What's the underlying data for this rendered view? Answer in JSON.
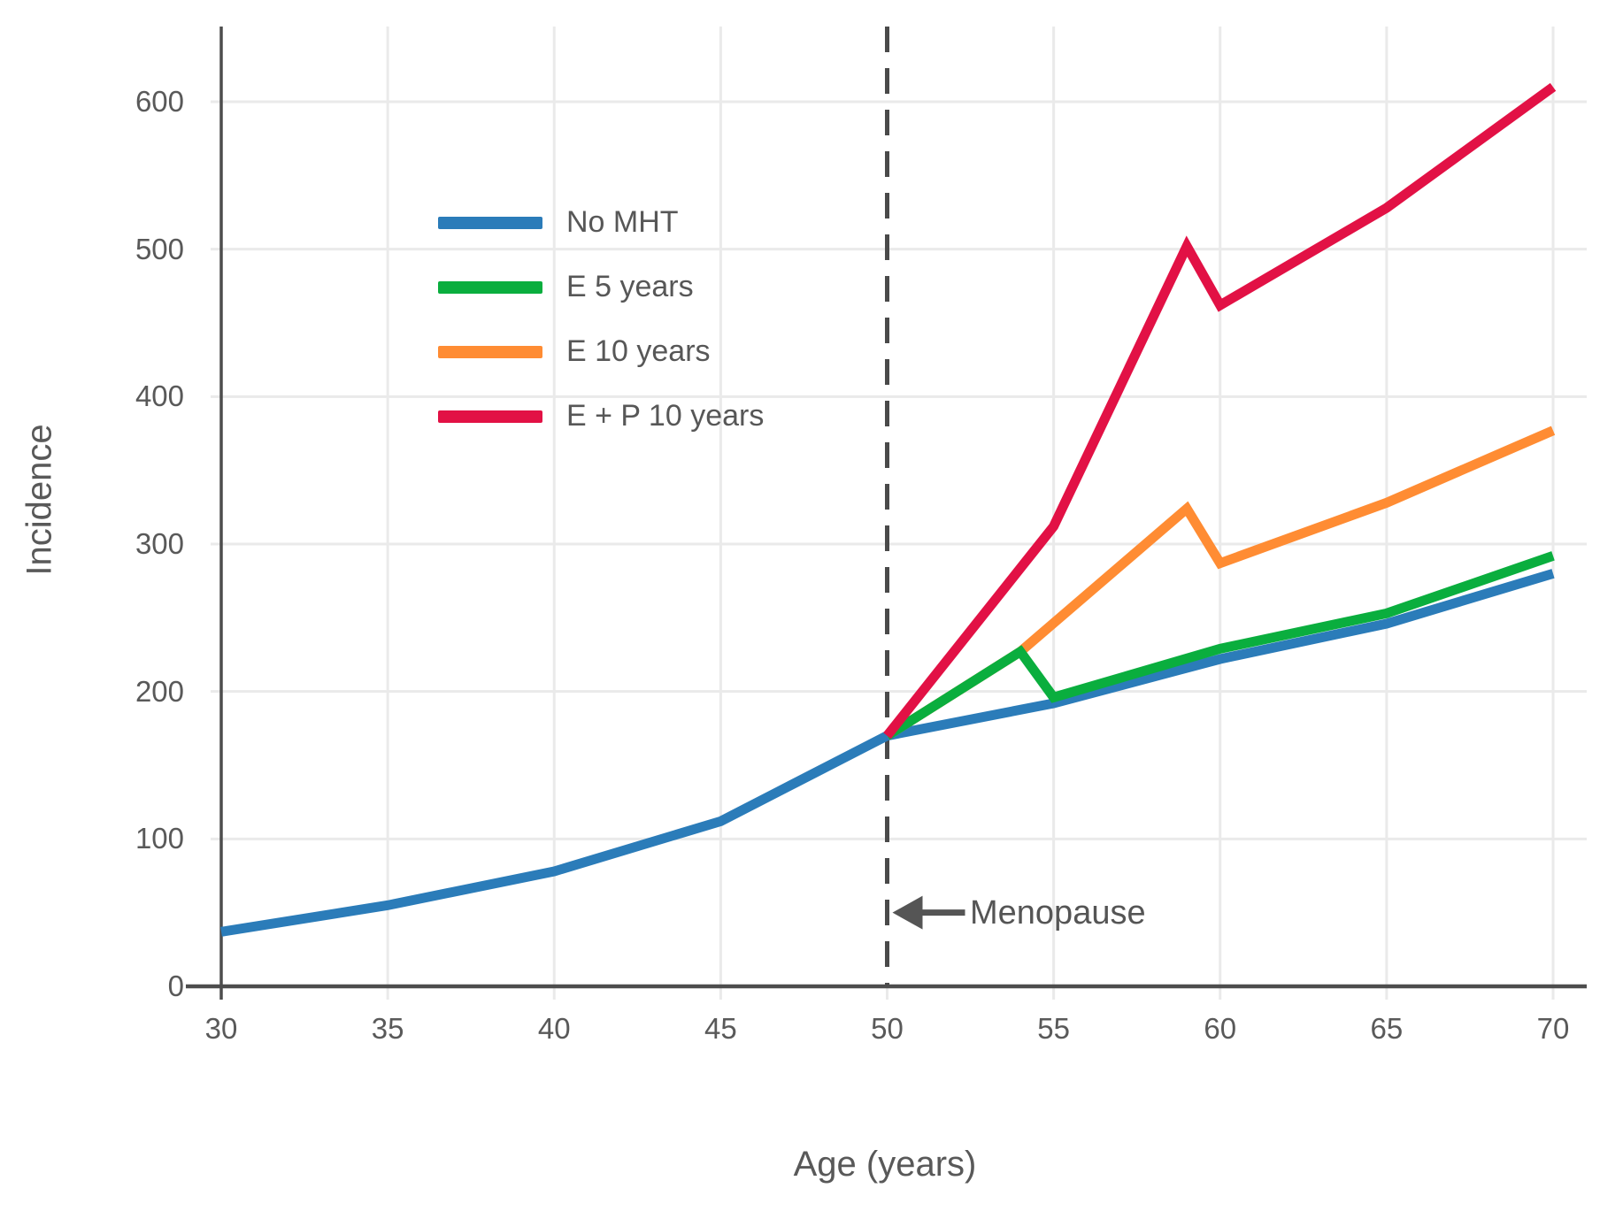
{
  "chart_data": {
    "type": "line",
    "title": "",
    "xlabel": "Age (years)",
    "ylabel": "Incidence",
    "xlim": [
      30,
      71
    ],
    "ylim": [
      0,
      650
    ],
    "x_ticks": [
      30,
      35,
      40,
      45,
      50,
      55,
      60,
      65,
      70
    ],
    "y_ticks": [
      0,
      100,
      200,
      300,
      400,
      500,
      600
    ],
    "grid": true,
    "legend_position": "upper left inside plot",
    "axis_color": "#4d4d4d",
    "grid_color": "#eaeaea",
    "tick_label_color": "#595959",
    "series": [
      {
        "name": "No MHT",
        "color": "#2b7cb9",
        "points": [
          [
            30,
            37
          ],
          [
            35,
            55
          ],
          [
            40,
            78
          ],
          [
            45,
            112
          ],
          [
            50,
            170
          ],
          [
            55,
            192
          ],
          [
            60,
            222
          ],
          [
            65,
            246
          ],
          [
            70,
            280
          ]
        ]
      },
      {
        "name": "E 5 years",
        "color": "#0aae3e",
        "points": [
          [
            50,
            170
          ],
          [
            54,
            227
          ],
          [
            55,
            196
          ],
          [
            60,
            229
          ],
          [
            65,
            253
          ],
          [
            70,
            292
          ]
        ]
      },
      {
        "name": "E 10 years",
        "color": "#ff8c33",
        "points": [
          [
            50,
            170
          ],
          [
            54,
            227
          ],
          [
            59,
            324
          ],
          [
            60,
            287
          ],
          [
            65,
            328
          ],
          [
            70,
            377
          ]
        ]
      },
      {
        "name": "E + P 10 years",
        "color": "#e21145",
        "points": [
          [
            50,
            170
          ],
          [
            55,
            312
          ],
          [
            59,
            502
          ],
          [
            60,
            462
          ],
          [
            65,
            528
          ],
          [
            70,
            610
          ]
        ]
      }
    ],
    "annotations": {
      "menopause_line": {
        "x": 50,
        "style": "long-dash",
        "color": "#4a4a4a"
      },
      "menopause": {
        "text": "Menopause",
        "x": 50,
        "y": 50,
        "arrow": "points-left-to-dashed-line",
        "arrow_color": "#555555"
      }
    }
  }
}
